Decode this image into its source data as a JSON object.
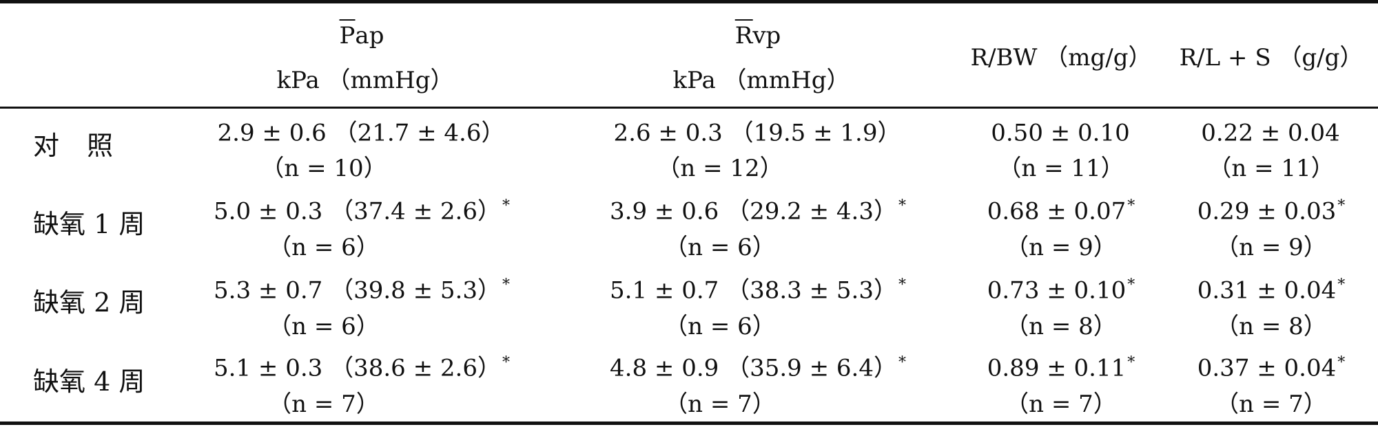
{
  "header": {
    "col1": {
      "symbol": "P",
      "rest": "ap",
      "unit": "kPa （mmHg）"
    },
    "col2": {
      "symbol": "R",
      "rest": "vp",
      "unit": "kPa （mmHg）"
    },
    "col3": "R/BW （mg/g）",
    "col4": "R/L + S （g/g）"
  },
  "rows": [
    {
      "label": "对照",
      "c1": "2.9 ± 0.6 （21.7 ± 4.6）",
      "c1_sig": "",
      "c1_n": "（n = 10）",
      "c2": "2.6 ± 0.3 （19.5 ± 1.9）",
      "c2_sig": "",
      "c2_n": "（n = 12）",
      "c3": "0.50 ± 0.10",
      "c3_sig": "",
      "c3_n": "（n = 11）",
      "c4": "0.22 ± 0.04",
      "c4_sig": "",
      "c4_n": "（n = 11）"
    },
    {
      "label": "缺氧 1 周",
      "c1": "5.0 ± 0.3 （37.4 ± 2.6）",
      "c1_sig": "*",
      "c1_n": "（n = 6）",
      "c2": "3.9 ± 0.6 （29.2 ± 4.3）",
      "c2_sig": "*",
      "c2_n": "（n = 6）",
      "c3": "0.68 ± 0.07",
      "c3_sig": "*",
      "c3_n": "（n = 9）",
      "c4": "0.29 ± 0.03",
      "c4_sig": "*",
      "c4_n": "（n = 9）"
    },
    {
      "label": "缺氧 2 周",
      "c1": "5.3 ± 0.7 （39.8 ± 5.3）",
      "c1_sig": "*",
      "c1_n": "（n = 6）",
      "c2": "5.1 ± 0.7 （38.3 ± 5.3）",
      "c2_sig": "*",
      "c2_n": "（n = 6）",
      "c3": "0.73 ± 0.10",
      "c3_sig": "*",
      "c3_n": "（n = 8）",
      "c4": "0.31 ± 0.04",
      "c4_sig": "*",
      "c4_n": "（n = 8）"
    },
    {
      "label": "缺氧 4 周",
      "c1": "5.1 ± 0.3 （38.6 ± 2.6）",
      "c1_sig": "*",
      "c1_n": "（n = 7）",
      "c2": "4.8 ± 0.9 （35.9 ± 6.4）",
      "c2_sig": "*",
      "c2_n": "（n = 7）",
      "c3": "0.89 ± 0.11",
      "c3_sig": "*",
      "c3_n": "（n = 7）",
      "c4": "0.37 ± 0.04",
      "c4_sig": "*",
      "c4_n": "（n = 7）"
    }
  ]
}
